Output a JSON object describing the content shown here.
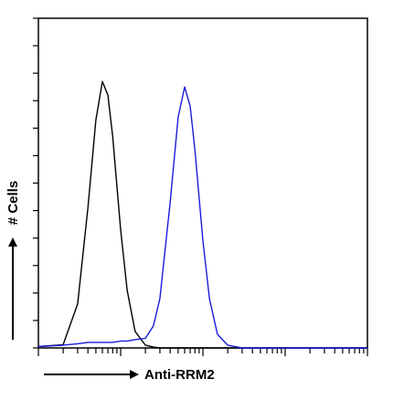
{
  "chart_data": {
    "type": "line",
    "xlabel": "Anti-RRM2",
    "ylabel": "# Cells",
    "x": [
      1,
      2,
      3,
      4,
      5,
      6,
      7,
      8,
      10,
      12,
      15,
      20,
      25,
      30,
      40,
      50,
      60,
      70,
      80,
      100,
      120,
      150,
      200,
      300,
      1000,
      10000
    ],
    "series": [
      {
        "color": "#000000",
        "values": [
          0.5,
          1.2,
          16,
          51,
          83,
          97,
          92,
          77,
          43,
          21,
          6,
          1,
          0.3,
          0,
          0,
          0,
          0,
          0,
          0,
          0,
          0,
          0,
          0,
          0,
          0,
          0
        ]
      },
      {
        "color": "#1a1adc",
        "values": [
          0.5,
          1,
          1.5,
          2,
          2,
          2,
          2,
          2,
          2.5,
          2.5,
          3,
          3.5,
          8,
          18,
          53,
          84,
          95,
          88,
          72,
          39,
          18,
          5,
          1,
          0,
          0,
          0
        ]
      }
    ],
    "xlog": true,
    "xlim": [
      1,
      10000
    ],
    "xticks": [
      1,
      2,
      3,
      4,
      5,
      6,
      7,
      8,
      9,
      10,
      20,
      30,
      40,
      50,
      60,
      70,
      80,
      90,
      100,
      200,
      300,
      400,
      500,
      600,
      700,
      800,
      900,
      1000,
      2000,
      3000,
      4000,
      5000,
      6000,
      7000,
      8000,
      9000,
      10000
    ],
    "ylim": [
      0,
      120
    ],
    "yticks": [
      0,
      10,
      20,
      30,
      40,
      50,
      60,
      70,
      80,
      90,
      100,
      110,
      120
    ]
  }
}
